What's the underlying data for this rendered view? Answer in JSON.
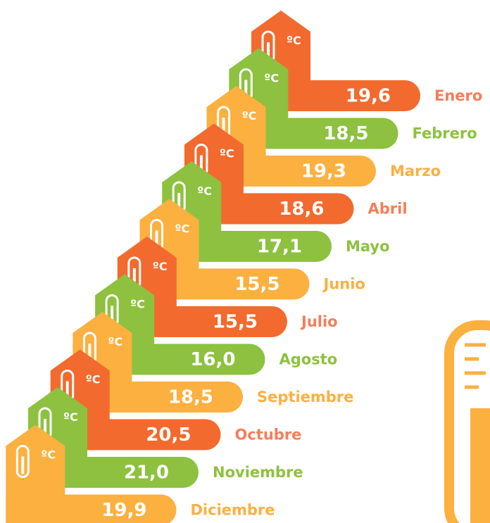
{
  "unit": "ºC",
  "items": [
    {
      "month": "Enero",
      "value": "19,6"
    },
    {
      "month": "Febrero",
      "value": "18,5"
    },
    {
      "month": "Marzo",
      "value": "19,3"
    },
    {
      "month": "Abril",
      "value": "18,6"
    },
    {
      "month": "Mayo",
      "value": "17,1"
    },
    {
      "month": "Junio",
      "value": "15,5"
    },
    {
      "month": "Julio",
      "value": "15,5"
    },
    {
      "month": "Agosto",
      "value": "16,0"
    },
    {
      "month": "Septiembre",
      "value": "18,5"
    },
    {
      "month": "Octubre",
      "value": "20,5"
    },
    {
      "month": "Noviembre",
      "value": "21,0"
    },
    {
      "month": "Diciembre",
      "value": "19,9"
    }
  ]
}
